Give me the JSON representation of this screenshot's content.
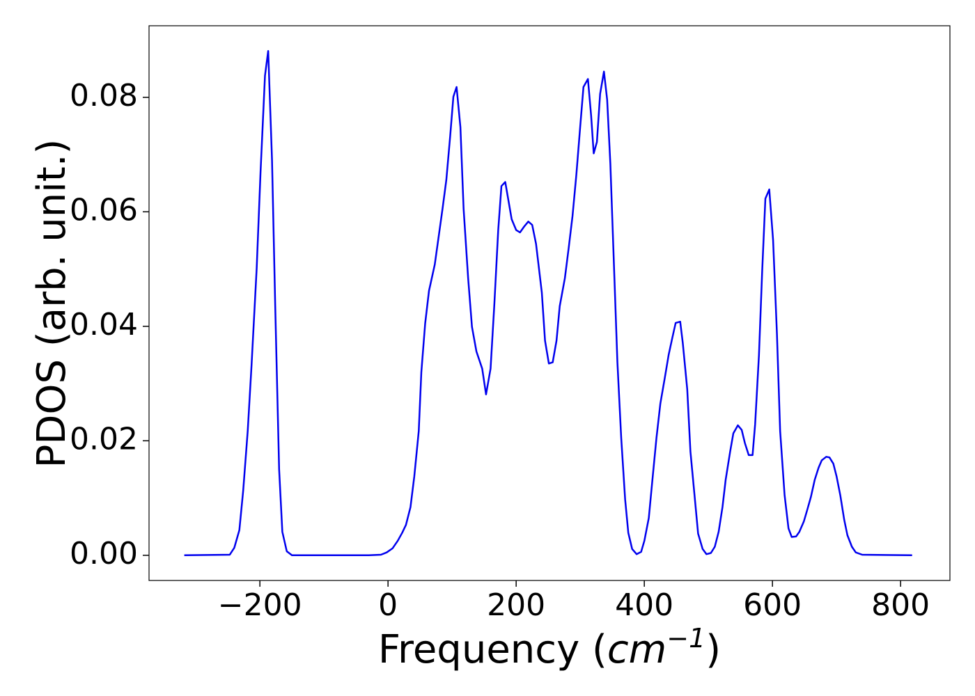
{
  "chart_data": {
    "type": "line",
    "xlabel": [
      "Frequency (",
      "cm",
      "−1",
      ")"
    ],
    "ylabel": "PDOS (arb. unit.)",
    "xlim": [
      -373,
      877
    ],
    "ylim": [
      -0.0044,
      0.0925
    ],
    "xticks": [
      {
        "value": -200,
        "label": "−200"
      },
      0,
      200,
      400,
      600,
      800
    ],
    "yticks": [
      {
        "value": 0,
        "label": "0.00"
      },
      0.02,
      0.04,
      0.06,
      0.08
    ],
    "grid": false,
    "x": [
      -318,
      -247,
      -240,
      -232,
      -226,
      -219,
      -213,
      -205,
      -199,
      -192,
      -187,
      -181,
      -176,
      -170,
      -165,
      -158,
      -150,
      -100,
      -60,
      -30,
      -11,
      -2,
      7,
      15,
      22,
      28,
      35,
      41,
      48,
      52,
      58,
      64,
      73,
      85,
      91,
      97,
      102,
      107,
      113,
      118,
      125,
      131,
      138,
      147,
      153,
      160,
      166,
      172,
      177,
      183,
      193,
      200,
      206,
      213,
      219,
      225,
      231,
      240,
      245,
      251,
      257,
      263,
      268,
      276,
      282,
      288,
      294,
      300,
      305,
      312,
      317,
      321,
      326,
      331,
      337,
      342,
      347,
      353,
      358,
      364,
      370,
      375,
      381,
      388,
      395,
      400,
      407,
      412,
      419,
      425,
      432,
      438,
      444,
      449,
      456,
      460,
      467,
      472,
      479,
      484,
      491,
      497,
      504,
      510,
      516,
      522,
      527,
      534,
      539,
      546,
      552,
      557,
      563,
      569,
      573,
      579,
      584,
      589,
      595,
      601,
      607,
      612,
      619,
      625,
      630,
      637,
      642,
      649,
      654,
      660,
      666,
      672,
      677,
      684,
      689,
      695,
      700,
      706,
      712,
      717,
      724,
      730,
      740,
      818
    ],
    "series": [
      {
        "name": "PDOS",
        "color": "#0000ee",
        "values": [
          0,
          0.0001,
          0.0013,
          0.0044,
          0.0113,
          0.0217,
          0.0332,
          0.0502,
          0.0669,
          0.0838,
          0.0881,
          0.069,
          0.0435,
          0.015,
          0.0041,
          0.0007,
          0,
          0,
          0,
          0,
          0.0001,
          0.0005,
          0.0012,
          0.0025,
          0.0039,
          0.0053,
          0.0084,
          0.0138,
          0.0217,
          0.032,
          0.0405,
          0.0462,
          0.0508,
          0.0605,
          0.0656,
          0.0732,
          0.0801,
          0.0818,
          0.0748,
          0.0605,
          0.0484,
          0.0399,
          0.0356,
          0.0326,
          0.0281,
          0.0326,
          0.044,
          0.0568,
          0.0645,
          0.0652,
          0.0587,
          0.0568,
          0.0564,
          0.0575,
          0.0583,
          0.0577,
          0.0544,
          0.0459,
          0.0375,
          0.0335,
          0.0337,
          0.0375,
          0.0435,
          0.0484,
          0.0537,
          0.0593,
          0.0665,
          0.075,
          0.0818,
          0.0832,
          0.0768,
          0.0702,
          0.0722,
          0.0806,
          0.0845,
          0.0796,
          0.0684,
          0.0496,
          0.0338,
          0.0205,
          0.0098,
          0.0039,
          0.0011,
          0.0002,
          0.0006,
          0.0025,
          0.0065,
          0.0124,
          0.0205,
          0.0265,
          0.031,
          0.035,
          0.0381,
          0.0406,
          0.0408,
          0.0371,
          0.029,
          0.0181,
          0.0098,
          0.0038,
          0.0011,
          0.0002,
          0.0004,
          0.0015,
          0.0041,
          0.0084,
          0.0132,
          0.0181,
          0.0213,
          0.0227,
          0.0219,
          0.0196,
          0.0175,
          0.0175,
          0.0229,
          0.035,
          0.0496,
          0.0623,
          0.0639,
          0.055,
          0.0387,
          0.0217,
          0.0105,
          0.0047,
          0.0032,
          0.0033,
          0.0041,
          0.0059,
          0.0078,
          0.0102,
          0.0132,
          0.0153,
          0.0166,
          0.0172,
          0.0171,
          0.016,
          0.0138,
          0.0104,
          0.0062,
          0.0035,
          0.0015,
          0.0005,
          0.0001,
          0
        ]
      }
    ]
  }
}
